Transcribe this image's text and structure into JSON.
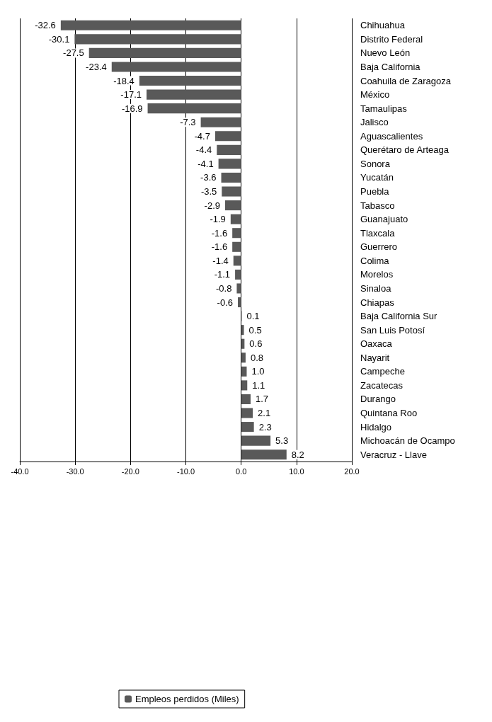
{
  "chart_data": {
    "type": "bar",
    "orientation": "horizontal",
    "categories": [
      "Chihuahua",
      "Distrito Federal",
      "Nuevo León",
      "Baja California",
      "Coahuila de Zaragoza",
      "México",
      "Tamaulipas",
      "Jalisco",
      "Aguascalientes",
      "Querétaro de Arteaga",
      "Sonora",
      "Yucatán",
      "Puebla",
      "Tabasco",
      "Guanajuato",
      "Tlaxcala",
      "Guerrero",
      "Colima",
      "Morelos",
      "Sinaloa",
      "Chiapas",
      "Baja California Sur",
      "San Luis Potosí",
      "Oaxaca",
      "Nayarit",
      "Campeche",
      "Zacatecas",
      "Durango",
      "Quintana Roo",
      "Hidalgo",
      "Michoacán de Ocampo",
      "Veracruz - Llave"
    ],
    "series": [
      {
        "name": "Empleos perdidos (Miles)",
        "color": "#595959",
        "values": [
          -32.6,
          -30.1,
          -27.5,
          -23.4,
          -18.4,
          -17.1,
          -16.9,
          -7.3,
          -4.7,
          -4.4,
          -4.1,
          -3.6,
          -3.5,
          -2.9,
          -1.9,
          -1.6,
          -1.6,
          -1.4,
          -1.1,
          -0.8,
          -0.6,
          0.1,
          0.5,
          0.6,
          0.8,
          1.0,
          1.1,
          1.7,
          2.1,
          2.3,
          5.3,
          8.2
        ],
        "value_labels": [
          "-32.6",
          "-30.1",
          "-27.5",
          "-23.4",
          "-18.4",
          "-17.1",
          "-16.9",
          "-7.3",
          "-4.7",
          "-4.4",
          "-4.1",
          "-3.6",
          "-3.5",
          "-2.9",
          "-1.9",
          "-1.6",
          "-1.6",
          "-1.4",
          "-1.1",
          "-0.8",
          "-0.6",
          "0.1",
          "0.5",
          "0.6",
          "0.8",
          "1.0",
          "1.1",
          "1.7",
          "2.1",
          "2.3",
          "5.3",
          "8.2"
        ]
      }
    ],
    "xlim": [
      -40,
      20
    ],
    "xticks": [
      {
        "value": -40,
        "label": "-40.0"
      },
      {
        "value": -30,
        "label": "-30.0"
      },
      {
        "value": -20,
        "label": "-20.0"
      },
      {
        "value": -10,
        "label": "-10.0"
      },
      {
        "value": 0,
        "label": "0.0"
      },
      {
        "value": 10,
        "label": "10.0"
      },
      {
        "value": 20,
        "label": "20.0"
      }
    ],
    "grid": "x",
    "legend": "bottom"
  }
}
